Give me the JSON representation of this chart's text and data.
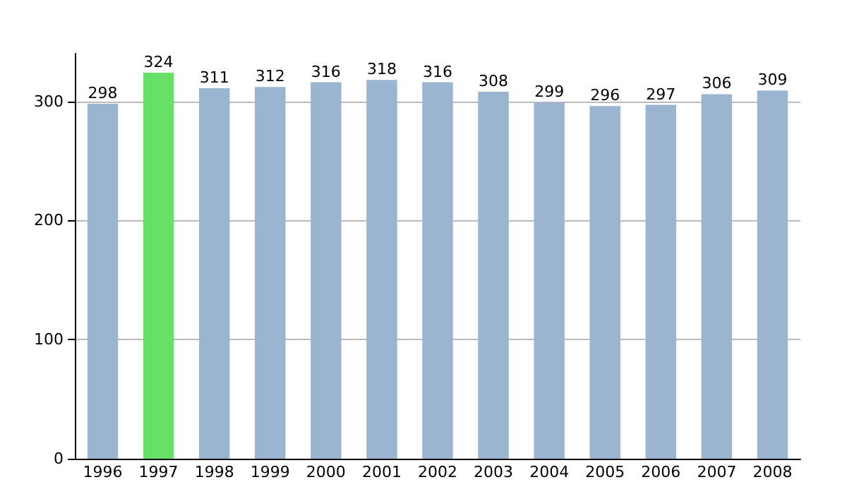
{
  "chart_data": {
    "type": "bar",
    "categories": [
      "1996",
      "1997",
      "1998",
      "1999",
      "2000",
      "2001",
      "2002",
      "2003",
      "2004",
      "2005",
      "2006",
      "2007",
      "2008"
    ],
    "values": [
      298,
      324,
      311,
      312,
      316,
      318,
      316,
      308,
      299,
      296,
      297,
      306,
      309
    ],
    "colors": [
      "#9bb4cf",
      "#66e066",
      "#9bb4cf",
      "#9bb4cf",
      "#9bb4cf",
      "#9bb4cf",
      "#9bb4cf",
      "#9bb4cf",
      "#9bb4cf",
      "#9bb4cf",
      "#9bb4cf",
      "#9bb4cf",
      "#9bb4cf"
    ],
    "ylim": [
      0,
      340
    ],
    "yticks": [
      0,
      100,
      200,
      300
    ],
    "grid": "y",
    "data_labels": true
  }
}
